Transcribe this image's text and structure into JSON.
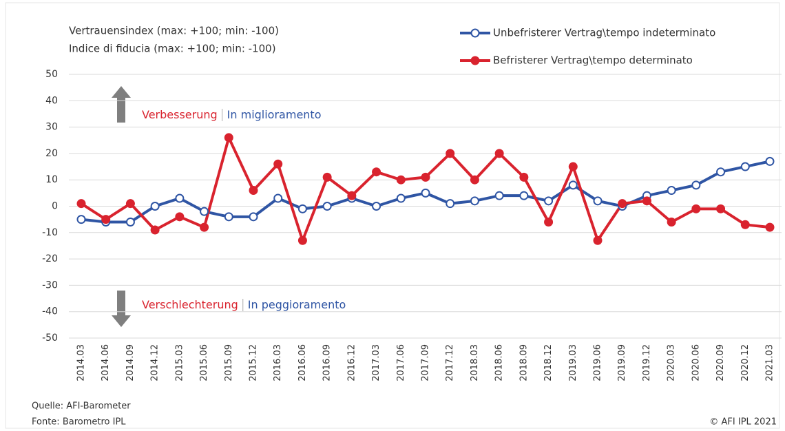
{
  "chart_data": {
    "type": "line",
    "title": [
      "Vertrauensindex (max: +100; min: -100)",
      "Indice di fiducia (max: +100; min: -100)"
    ],
    "categories": [
      "2014.03",
      "2014.06",
      "2014.09",
      "2014.12",
      "2015.03",
      "2015.06",
      "2015.09",
      "2015.12",
      "2016.03",
      "2016.06",
      "2016.09",
      "2016.12",
      "2017.03",
      "2017.06",
      "2017.09",
      "2017.12",
      "2018.03",
      "2018.06",
      "2018.09",
      "2018.12",
      "2019.03",
      "2019.06",
      "2019.09",
      "2019.12",
      "2020.03",
      "2020.06",
      "2020.09",
      "2020.12",
      "2021.03"
    ],
    "series": [
      {
        "name": "Unbefristerer Vertrag\\tempo indeterminato",
        "color": "#2f55a4",
        "marker": "open",
        "values": [
          -5,
          -6,
          -6,
          0,
          3,
          -2,
          -4,
          -4,
          3,
          -1,
          0,
          3,
          0,
          3,
          5,
          1,
          2,
          4,
          4,
          2,
          8,
          2,
          0,
          4,
          6,
          8,
          13,
          15,
          17
        ]
      },
      {
        "name": "Befristerer Vertrag\\tempo determinato",
        "color": "#d9232e",
        "marker": "filled",
        "values": [
          1,
          -5,
          1,
          -9,
          -4,
          -8,
          26,
          6,
          16,
          -13,
          11,
          4,
          13,
          10,
          11,
          20,
          10,
          20,
          11,
          -6,
          15,
          -13,
          1,
          2,
          -6,
          -1,
          -1,
          -7,
          -8
        ]
      }
    ],
    "ylim": [
      -50,
      50
    ],
    "yticks": [
      -50,
      -40,
      -30,
      -20,
      -10,
      0,
      10,
      20,
      30,
      40,
      50
    ],
    "grid": true,
    "legend": "top-right",
    "annotations": {
      "up": {
        "texts": [
          "Verbesserung",
          "In miglioramento"
        ],
        "colors": [
          "#d9232e",
          "#2f55a4"
        ]
      },
      "down": {
        "texts": [
          "Verschlechterung",
          "In peggioramento"
        ],
        "colors": [
          "#d9232e",
          "#2f55a4"
        ]
      }
    },
    "source": [
      "Quelle: AFI-Barometer",
      "Fonte: Barometro IPL"
    ],
    "copyright": "© AFI IPL 2021"
  }
}
